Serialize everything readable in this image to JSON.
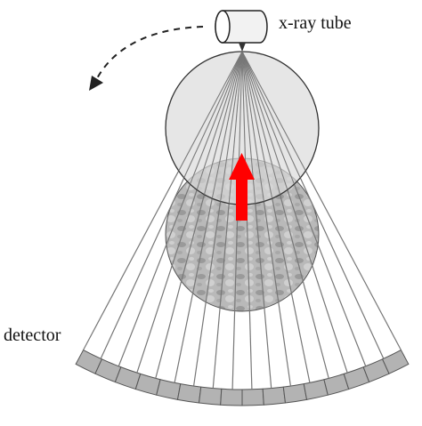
{
  "labels": {
    "tube": "x-ray tube",
    "detector": "detector"
  },
  "diagram": {
    "ray_count": 18,
    "detector_cell_count": 16,
    "colors": {
      "ray": "#777777",
      "upper_circle_fill": "#d9d9d9",
      "lower_circle_fill": "#bdbdbd",
      "detector_fill": "#b3b3b3",
      "detector_stroke": "#555555",
      "arrow": "#ff0000",
      "outline": "#333333",
      "dashed_arrow": "#222222"
    }
  }
}
